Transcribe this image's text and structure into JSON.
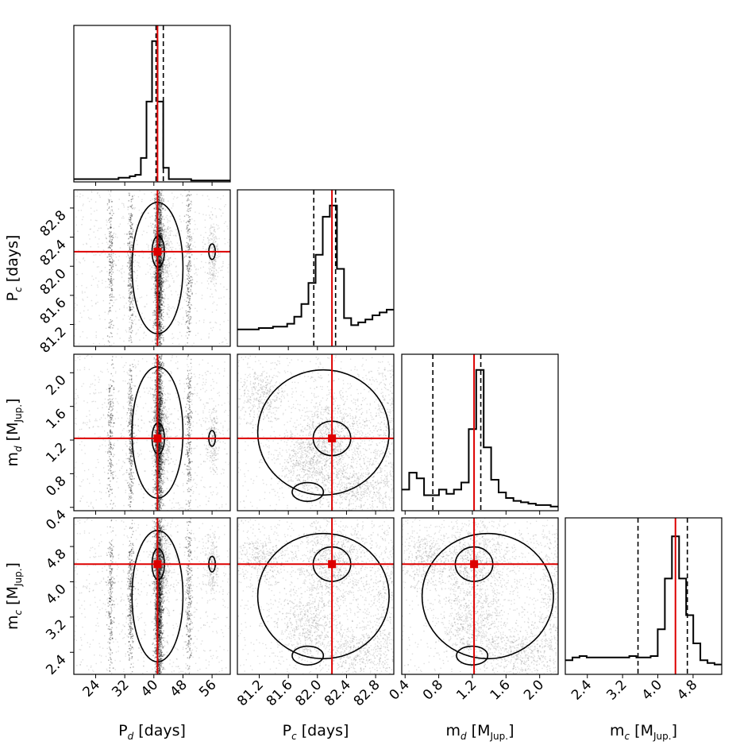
{
  "chart_data": {
    "type": "corner",
    "parameters": [
      {
        "key": "Pd",
        "label_main": "P",
        "label_sub": "d",
        "label_unit": " [days]",
        "range": [
          18,
          61
        ],
        "ticks": [
          24,
          32,
          40,
          48,
          56
        ],
        "tick_labels": [
          "24",
          "32",
          "40",
          "48",
          "56"
        ],
        "truth": 41,
        "quantiles": [
          40.6,
          42.6
        ]
      },
      {
        "key": "Pc",
        "label_main": "P",
        "label_sub": "c",
        "label_unit": " [days]",
        "range": [
          80.9,
          83.05
        ],
        "ticks": [
          81.2,
          81.6,
          82.0,
          82.4,
          82.8
        ],
        "tick_labels": [
          "81.2",
          "81.6",
          "82.0",
          "82.4",
          "82.8"
        ],
        "truth": 82.2,
        "quantiles": [
          81.95,
          82.25
        ]
      },
      {
        "key": "md",
        "label_main": "m",
        "label_sub": "d",
        "label_unit": " [M",
        "label_unit_sub": "Jup.",
        "label_close": "]",
        "range": [
          0.36,
          2.22
        ],
        "ticks": [
          0.4,
          0.8,
          1.2,
          1.6,
          2.0
        ],
        "tick_labels": [
          "0.4",
          "0.8",
          "1.2",
          "1.6",
          "2.0"
        ],
        "truth": 1.22,
        "quantiles": [
          0.73,
          1.3
        ]
      },
      {
        "key": "mc",
        "label_main": "m",
        "label_sub": "c",
        "label_unit": " [M",
        "label_unit_sub": "Jup.",
        "label_close": "]",
        "range": [
          1.9,
          5.45
        ],
        "ticks": [
          2.4,
          3.2,
          4.0,
          4.8
        ],
        "tick_labels": [
          "2.4",
          "3.2",
          "4.0",
          "4.8"
        ],
        "truth": 4.4,
        "quantiles": [
          3.55,
          4.67
        ]
      }
    ],
    "histograms": [
      [
        0.02,
        0.02,
        0.02,
        0.02,
        0.02,
        0.02,
        0.02,
        0.02,
        0.03,
        0.03,
        0.04,
        0.05,
        0.17,
        0.57,
        1.0,
        0.57,
        0.1,
        0.02,
        0.02,
        0.02,
        0.02,
        0.01,
        0.01,
        0.01,
        0.01,
        0.01,
        0.01,
        0.01
      ],
      [
        0.12,
        0.12,
        0.12,
        0.13,
        0.13,
        0.14,
        0.14,
        0.16,
        0.21,
        0.3,
        0.45,
        0.65,
        0.92,
        1.0,
        0.55,
        0.2,
        0.15,
        0.17,
        0.19,
        0.22,
        0.24,
        0.26
      ],
      [
        0.15,
        0.27,
        0.23,
        0.11,
        0.11,
        0.15,
        0.12,
        0.15,
        0.2,
        0.58,
        1.0,
        0.45,
        0.22,
        0.13,
        0.09,
        0.07,
        0.06,
        0.05,
        0.04,
        0.04,
        0.03
      ],
      [
        0.1,
        0.12,
        0.13,
        0.12,
        0.12,
        0.12,
        0.12,
        0.12,
        0.12,
        0.13,
        0.12,
        0.12,
        0.13,
        0.32,
        0.68,
        0.98,
        0.68,
        0.42,
        0.22,
        0.1,
        0.08,
        0.07
      ]
    ],
    "title": "",
    "truth_color": "#dd0000",
    "density_color": "#000000"
  }
}
